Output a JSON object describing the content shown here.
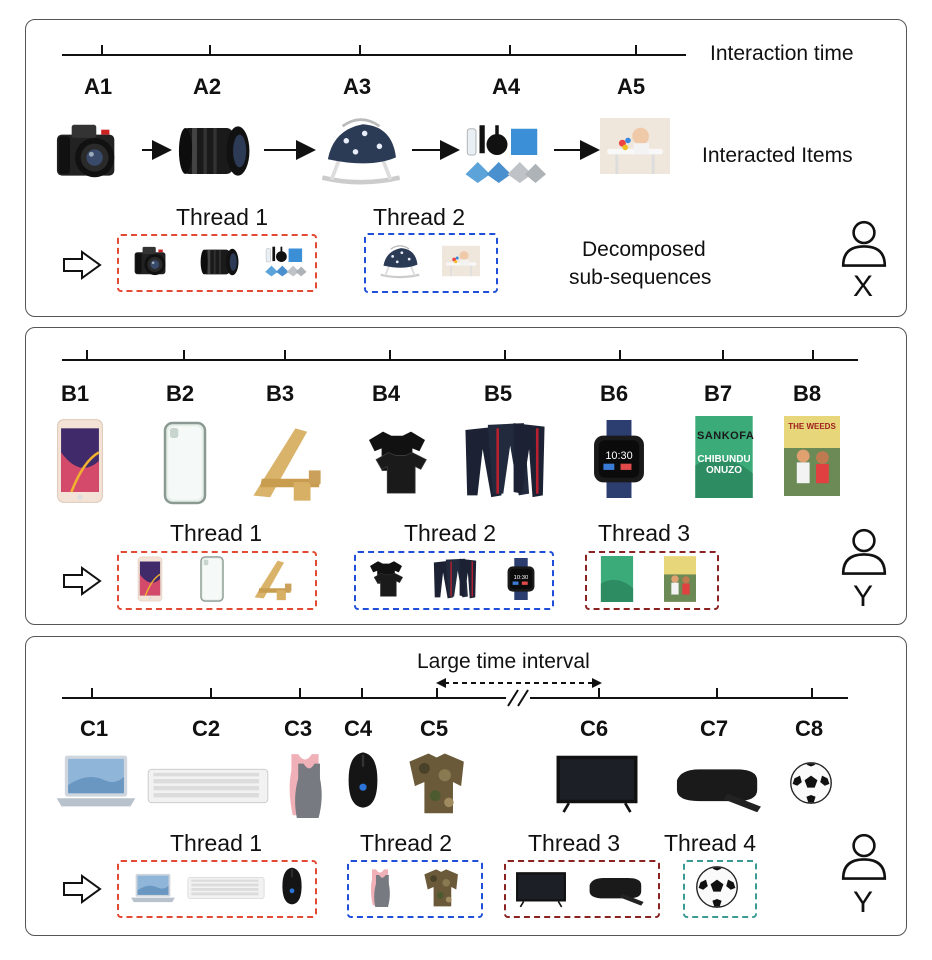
{
  "panel_x": {
    "timeline_label": "Interaction time",
    "items_label": "Interacted Items",
    "decomposed_label_line1": "Decomposed",
    "decomposed_label_line2": "sub-sequences",
    "labels": [
      "A1",
      "A2",
      "A3",
      "A4",
      "A5"
    ],
    "item_icons": [
      "dslr-camera-icon",
      "camera-lens-icon",
      "baby-bouncer-icon",
      "lens-cleaning-kit-icon",
      "baby-high-chair-icon"
    ],
    "threads": [
      {
        "title": "Thread 1",
        "items": [
          "A1",
          "A2",
          "A4"
        ],
        "color": "#e34a33"
      },
      {
        "title": "Thread 2",
        "items": [
          "A3",
          "A5"
        ],
        "color": "#1f4fd8"
      }
    ],
    "user": "X"
  },
  "panel_y": {
    "labels": [
      "B1",
      "B2",
      "B3",
      "B4",
      "B5",
      "B6",
      "B7",
      "B8"
    ],
    "item_icons": [
      "smartphone-icon",
      "phone-case-icon",
      "phone-stand-icon",
      "tshirt-icon",
      "pants-icon",
      "smartwatch-icon",
      "book-icon",
      "book-icon"
    ],
    "book_titles": {
      "b7_title": "SANKOFA",
      "b7_author": "CHIBUNDU ONUZO",
      "b8_title": "THE WEEDS"
    },
    "threads": [
      {
        "title": "Thread 1",
        "items": [
          "B1",
          "B2",
          "B3"
        ],
        "color": "#e34a33"
      },
      {
        "title": "Thread 2",
        "items": [
          "B4",
          "B5",
          "B6"
        ],
        "color": "#1f4fd8"
      },
      {
        "title": "Thread 3",
        "items": [
          "B7",
          "B8"
        ],
        "color": "#8b2222"
      }
    ],
    "user": "Y"
  },
  "panel_z": {
    "interval_label": "Large time interval",
    "labels": [
      "C1",
      "C2",
      "C3",
      "C4",
      "C5",
      "C6",
      "C7",
      "C8"
    ],
    "item_icons": [
      "laptop-icon",
      "keyboard-icon",
      "tank-top-icon",
      "gaming-mouse-icon",
      "camo-jacket-icon",
      "tv-icon",
      "streaming-box-icon",
      "soccer-ball-icon"
    ],
    "threads": [
      {
        "title": "Thread 1",
        "items": [
          "C1",
          "C2",
          "C4"
        ],
        "color": "#e34a33"
      },
      {
        "title": "Thread 2",
        "items": [
          "C3",
          "C5"
        ],
        "color": "#1f4fd8"
      },
      {
        "title": "Thread 3",
        "items": [
          "C6",
          "C7"
        ],
        "color": "#8b2222"
      },
      {
        "title": "Thread 4",
        "items": [
          "C8"
        ],
        "color": "#3a9b94"
      }
    ],
    "user": "Y"
  }
}
